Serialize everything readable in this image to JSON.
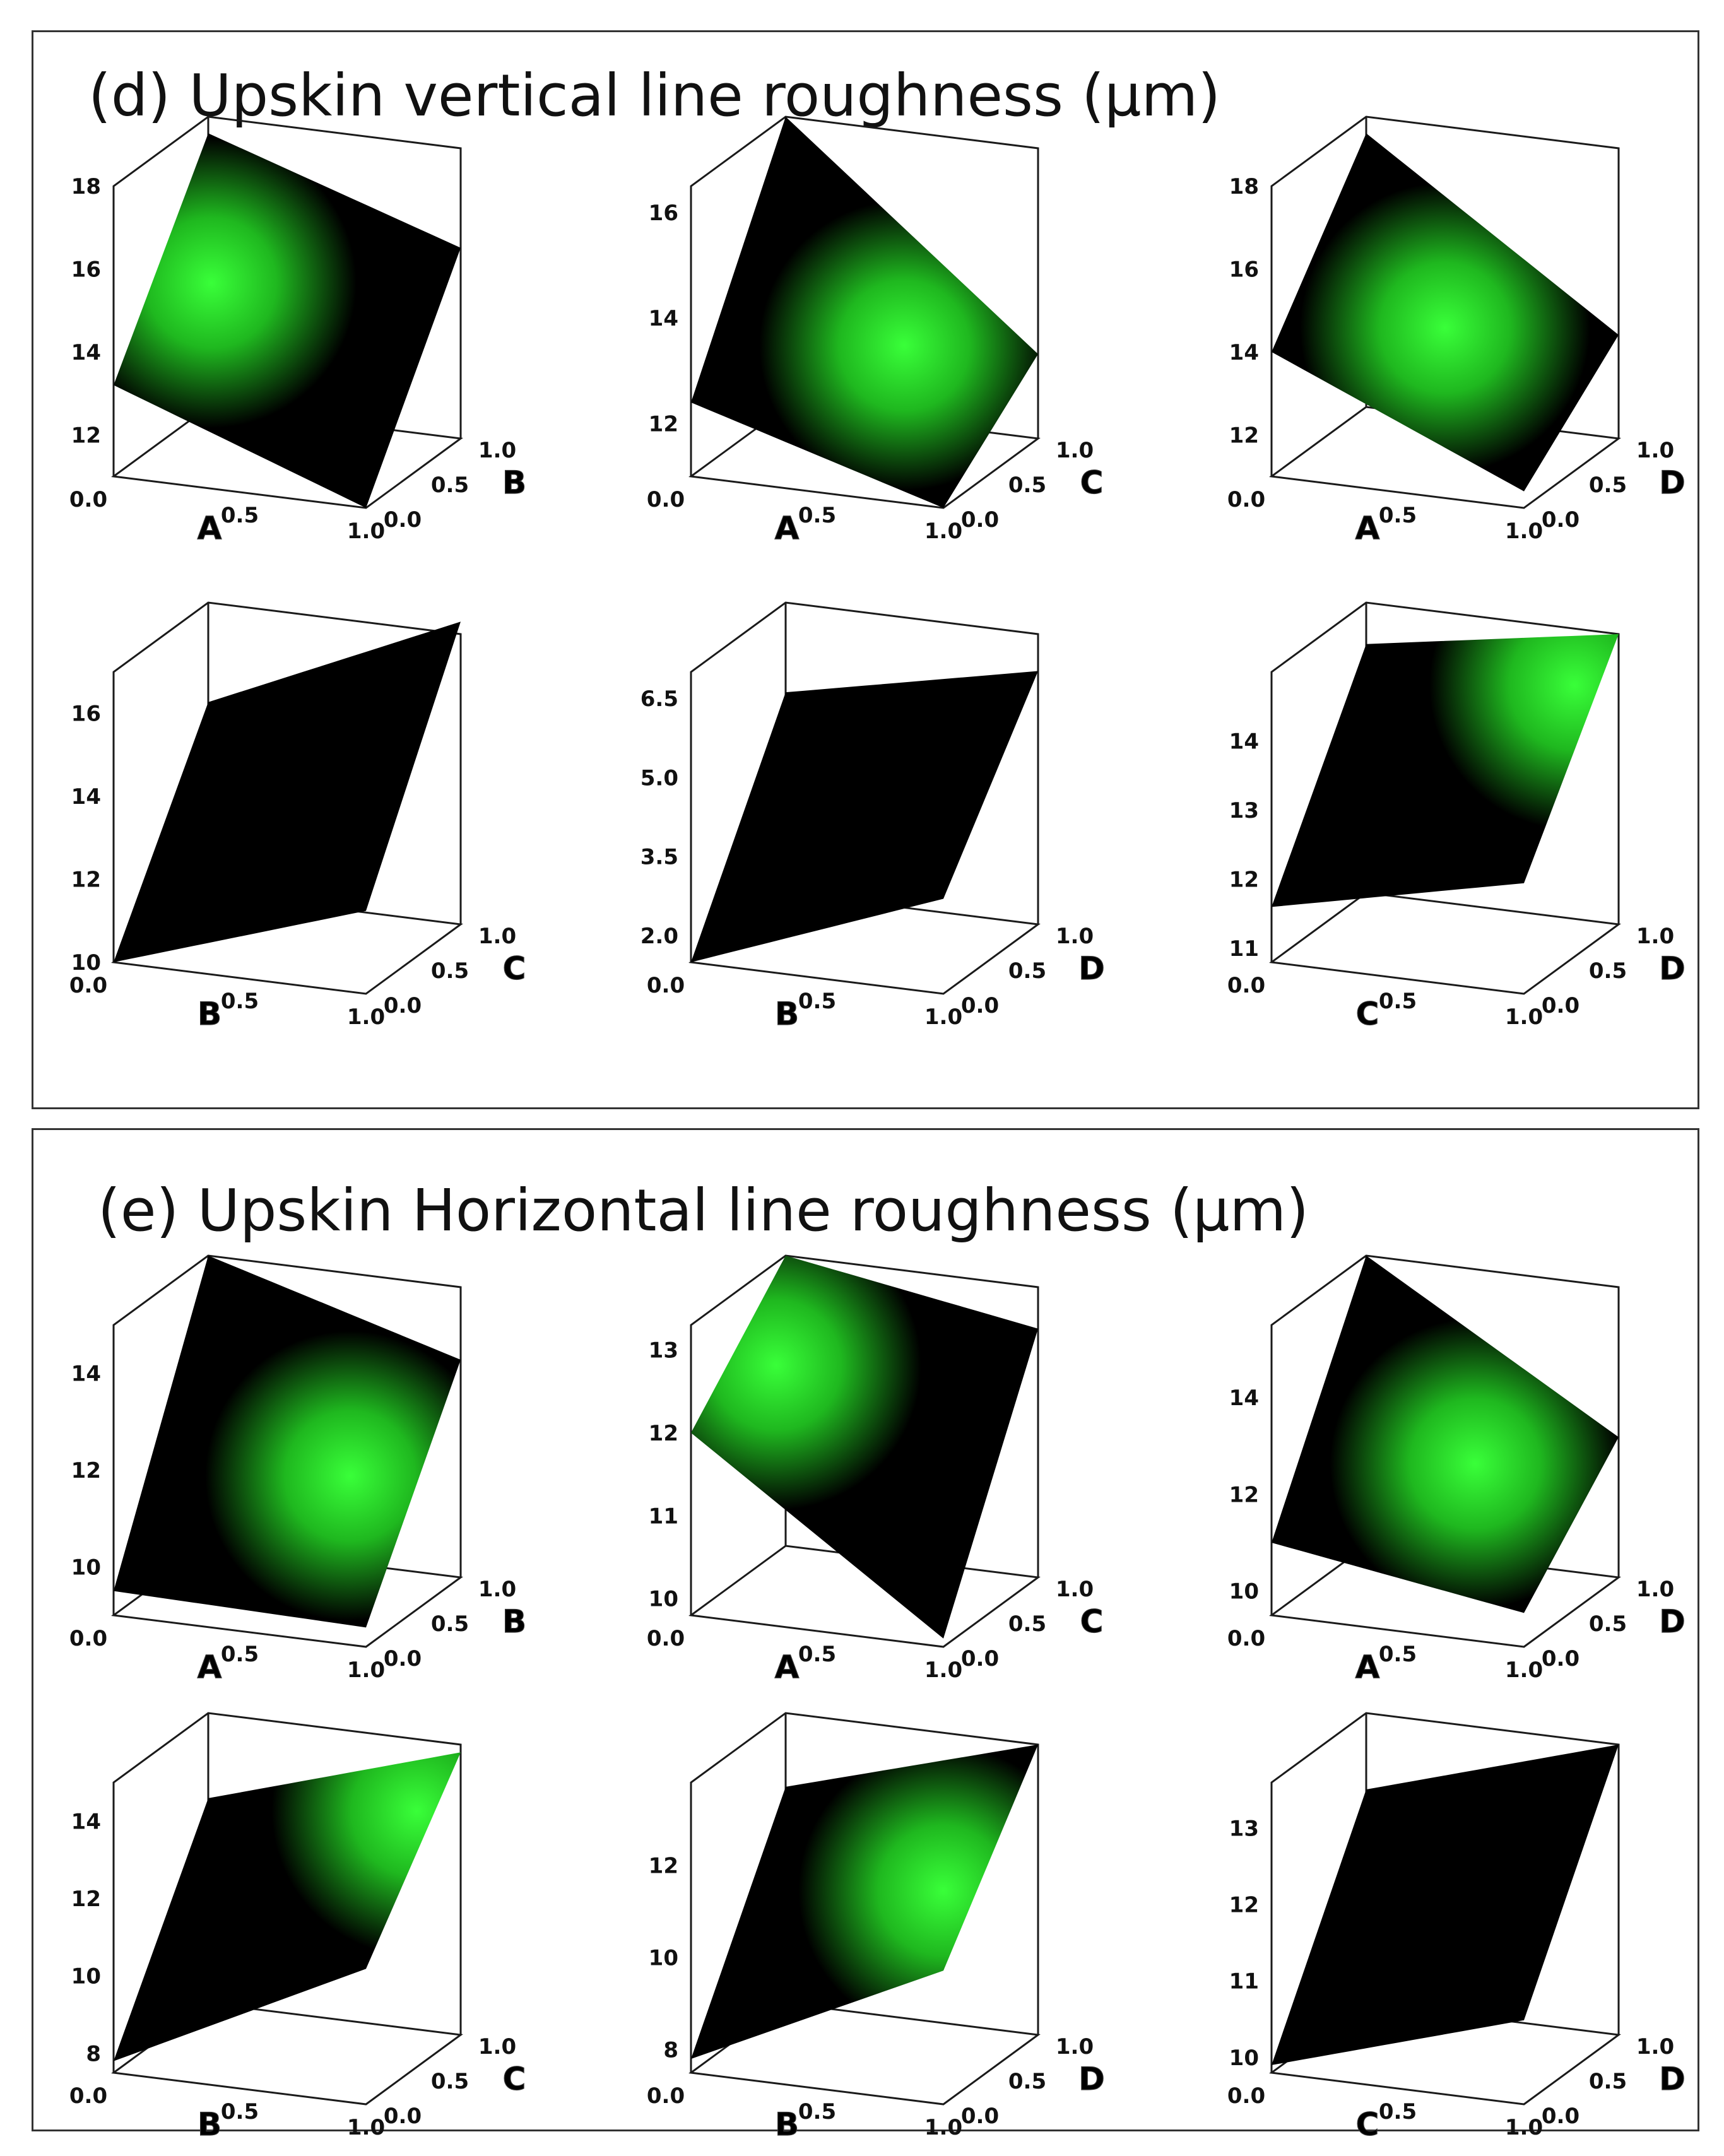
{
  "panels": [
    {
      "title": "(d) Upskin vertical line roughness (µm)",
      "charts": [
        {
          "type": "surface",
          "x_axis": "A",
          "y_axis": "B",
          "x_ticks": [
            "0.0",
            "0.5",
            "1.0"
          ],
          "y_ticks": [
            "0.0",
            "0.5",
            "1.0"
          ],
          "z_ticks": [
            "12",
            "14",
            "16",
            "18"
          ],
          "zlim": [
            11,
            18
          ],
          "corner_values": [
            13.2,
            11.0,
            17.6,
            15.6
          ],
          "highlight": [
            0.2,
            0.5
          ]
        },
        {
          "type": "surface",
          "x_axis": "A",
          "y_axis": "C",
          "x_ticks": [
            "0.0",
            "0.5",
            "1.0"
          ],
          "y_ticks": [
            "0.0",
            "0.5",
            "1.0"
          ],
          "z_ticks": [
            "12",
            "14",
            "16"
          ],
          "zlim": [
            11,
            16.5
          ],
          "corner_values": [
            12.4,
            11.0,
            16.5,
            12.6
          ],
          "highlight": [
            0.62,
            0.6
          ]
        },
        {
          "type": "surface",
          "x_axis": "A",
          "y_axis": "D",
          "x_ticks": [
            "0.0",
            "0.5",
            "1.0"
          ],
          "y_ticks": [
            "0.0",
            "0.5",
            "1.0"
          ],
          "z_ticks": [
            "12",
            "14",
            "16",
            "18"
          ],
          "zlim": [
            11,
            18
          ],
          "corner_values": [
            14.0,
            11.4,
            17.6,
            13.5
          ],
          "highlight": [
            0.5,
            0.5
          ]
        },
        {
          "type": "surface",
          "x_axis": "B",
          "y_axis": "C",
          "x_ticks": [
            "0.0",
            "0.5",
            "1.0"
          ],
          "y_ticks": [
            "0.0",
            "0.5",
            "1.0"
          ],
          "z_ticks": [
            "10",
            "12",
            "14",
            "16"
          ],
          "zlim": [
            10,
            17
          ],
          "corner_values": [
            10.0,
            12.0,
            14.6,
            17.3
          ],
          "highlight": null
        },
        {
          "type": "surface",
          "x_axis": "B",
          "y_axis": "D",
          "x_ticks": [
            "0.0",
            "0.5",
            "1.0"
          ],
          "y_ticks": [
            "0.0",
            "0.5",
            "1.0"
          ],
          "z_ticks": [
            "2.0",
            "3.5",
            "5.0",
            "6.5"
          ],
          "zlim": [
            1.5,
            7.0
          ],
          "corner_values": [
            1.5,
            3.3,
            5.3,
            6.3
          ],
          "highlight": null
        },
        {
          "type": "surface",
          "x_axis": "C",
          "y_axis": "D",
          "x_ticks": [
            "0.0",
            "0.5",
            "1.0"
          ],
          "y_ticks": [
            "0.0",
            "0.5",
            "1.0"
          ],
          "z_ticks": [
            "11",
            "12",
            "13",
            "14"
          ],
          "zlim": [
            10.8,
            15
          ],
          "corner_values": [
            11.6,
            12.4,
            14.4,
            15.0
          ],
          "highlight": [
            0.9,
            0.8
          ]
        }
      ]
    },
    {
      "title": "(e) Upskin Horizontal line roughness (µm)",
      "charts": [
        {
          "type": "surface",
          "x_axis": "A",
          "y_axis": "B",
          "x_ticks": [
            "0.0",
            "0.5",
            "1.0"
          ],
          "y_ticks": [
            "0.0",
            "0.5",
            "1.0"
          ],
          "z_ticks": [
            "10",
            "12",
            "14"
          ],
          "zlim": [
            9,
            15
          ],
          "corner_values": [
            9.5,
            9.4,
            15.0,
            13.5
          ],
          "highlight": [
            0.75,
            0.5
          ]
        },
        {
          "type": "surface",
          "x_axis": "A",
          "y_axis": "C",
          "x_ticks": [
            "0.0",
            "0.5",
            "1.0"
          ],
          "y_ticks": [
            "0.0",
            "0.5",
            "1.0"
          ],
          "z_ticks": [
            "10",
            "11",
            "12",
            "13"
          ],
          "zlim": [
            9.8,
            13.3
          ],
          "corner_values": [
            12.0,
            9.9,
            13.3,
            12.8
          ],
          "highlight": [
            0.15,
            0.5
          ]
        },
        {
          "type": "surface",
          "x_axis": "A",
          "y_axis": "D",
          "x_ticks": [
            "0.0",
            "0.5",
            "1.0"
          ],
          "y_ticks": [
            "0.0",
            "0.5",
            "1.0"
          ],
          "z_ticks": [
            "10",
            "12",
            "14"
          ],
          "zlim": [
            9.5,
            15.5
          ],
          "corner_values": [
            11.0,
            10.2,
            15.5,
            12.4
          ],
          "highlight": [
            0.6,
            0.55
          ]
        },
        {
          "type": "surface",
          "x_axis": "B",
          "y_axis": "C",
          "x_ticks": [
            "0.0",
            "0.5",
            "1.0"
          ],
          "y_ticks": [
            "0.0",
            "0.5",
            "1.0"
          ],
          "z_ticks": [
            "8",
            "10",
            "12",
            "14"
          ],
          "zlim": [
            7.5,
            15
          ],
          "corner_values": [
            7.8,
            11.0,
            12.8,
            14.8
          ],
          "highlight": [
            0.92,
            0.75
          ]
        },
        {
          "type": "surface",
          "x_axis": "B",
          "y_axis": "D",
          "x_ticks": [
            "0.0",
            "0.5",
            "1.0"
          ],
          "y_ticks": [
            "0.0",
            "0.5",
            "1.0"
          ],
          "z_ticks": [
            "8",
            "10",
            "12"
          ],
          "zlim": [
            7.5,
            13.8
          ],
          "corner_values": [
            7.8,
            10.4,
            12.2,
            13.8
          ],
          "highlight": [
            0.85,
            0.4
          ]
        },
        {
          "type": "surface",
          "x_axis": "C",
          "y_axis": "D",
          "x_ticks": [
            "0.0",
            "0.5",
            "1.0"
          ],
          "y_ticks": [
            "0.0",
            "0.5",
            "1.0"
          ],
          "z_ticks": [
            "10",
            "11",
            "12",
            "13"
          ],
          "zlim": [
            9.8,
            13.6
          ],
          "corner_values": [
            9.9,
            10.9,
            12.6,
            13.6
          ],
          "highlight": null
        }
      ]
    }
  ]
}
